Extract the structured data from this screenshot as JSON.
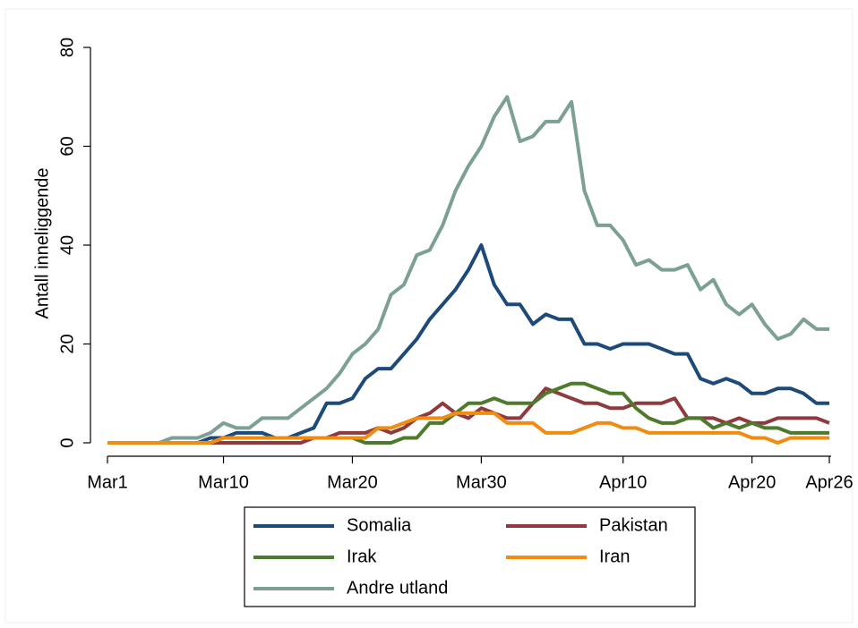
{
  "chart_data": {
    "type": "line",
    "y_label": "Antall inneliggende",
    "categories": [
      "Mar1",
      null,
      null,
      null,
      null,
      null,
      null,
      null,
      null,
      "Mar10",
      null,
      null,
      null,
      null,
      null,
      null,
      null,
      null,
      null,
      "Mar20",
      null,
      null,
      null,
      null,
      null,
      null,
      null,
      null,
      null,
      "Mar30",
      null,
      null,
      null,
      null,
      null,
      null,
      null,
      null,
      null,
      null,
      "Apr10",
      null,
      null,
      null,
      null,
      null,
      null,
      null,
      null,
      null,
      "Apr20",
      null,
      null,
      null,
      null,
      null,
      "Apr26"
    ],
    "ylim": [
      0,
      80
    ],
    "yticks": [
      0,
      20,
      40,
      60,
      80
    ],
    "legend": "bottom",
    "series": [
      {
        "name": "Somalia",
        "color": "#1d4a78",
        "values": [
          0,
          0,
          0,
          0,
          0,
          0,
          0,
          0,
          1,
          1,
          2,
          2,
          2,
          1,
          1,
          2,
          3,
          8,
          8,
          9,
          13,
          15,
          15,
          18,
          21,
          25,
          28,
          31,
          35,
          40,
          32,
          28,
          28,
          24,
          26,
          25,
          25,
          20,
          20,
          19,
          20,
          20,
          20,
          19,
          18,
          18,
          13,
          12,
          13,
          12,
          10,
          10,
          11,
          11,
          10,
          8,
          8
        ]
      },
      {
        "name": "Pakistan",
        "color": "#8e3a3e",
        "values": [
          0,
          0,
          0,
          0,
          0,
          0,
          0,
          0,
          0,
          0,
          0,
          0,
          0,
          0,
          0,
          0,
          1,
          1,
          2,
          2,
          2,
          3,
          2,
          3,
          5,
          6,
          8,
          6,
          5,
          7,
          6,
          5,
          5,
          8,
          11,
          10,
          9,
          8,
          8,
          7,
          7,
          8,
          8,
          8,
          9,
          5,
          5,
          5,
          4,
          5,
          4,
          4,
          5,
          5,
          5,
          5,
          4
        ]
      },
      {
        "name": "Irak",
        "color": "#4d7a2c",
        "values": [
          0,
          0,
          0,
          0,
          0,
          0,
          0,
          0,
          0,
          1,
          1,
          1,
          1,
          1,
          1,
          1,
          1,
          1,
          1,
          1,
          0,
          0,
          0,
          1,
          1,
          4,
          4,
          6,
          8,
          8,
          9,
          8,
          8,
          8,
          10,
          11,
          12,
          12,
          11,
          10,
          10,
          7,
          5,
          4,
          4,
          5,
          5,
          3,
          4,
          3,
          4,
          3,
          3,
          2,
          2,
          2,
          2
        ]
      },
      {
        "name": "Iran",
        "color": "#f08c12",
        "values": [
          0,
          0,
          0,
          0,
          0,
          0,
          0,
          0,
          0,
          1,
          1,
          1,
          1,
          1,
          1,
          1,
          1,
          1,
          1,
          1,
          1,
          3,
          3,
          4,
          5,
          5,
          5,
          6,
          6,
          6,
          6,
          4,
          4,
          4,
          2,
          2,
          2,
          3,
          4,
          4,
          3,
          3,
          2,
          2,
          2,
          2,
          2,
          2,
          2,
          2,
          1,
          1,
          0,
          1,
          1,
          1,
          1
        ]
      },
      {
        "name": "Andre utland",
        "color": "#7c9f96",
        "values": [
          0,
          0,
          0,
          0,
          0,
          1,
          1,
          1,
          2,
          4,
          3,
          3,
          5,
          5,
          5,
          7,
          9,
          11,
          14,
          18,
          20,
          23,
          30,
          32,
          38,
          39,
          44,
          51,
          56,
          60,
          66,
          70,
          61,
          62,
          65,
          65,
          69,
          51,
          44,
          44,
          41,
          36,
          37,
          35,
          35,
          36,
          31,
          33,
          28,
          26,
          28,
          24,
          21,
          22,
          25,
          23,
          23
        ]
      }
    ]
  }
}
